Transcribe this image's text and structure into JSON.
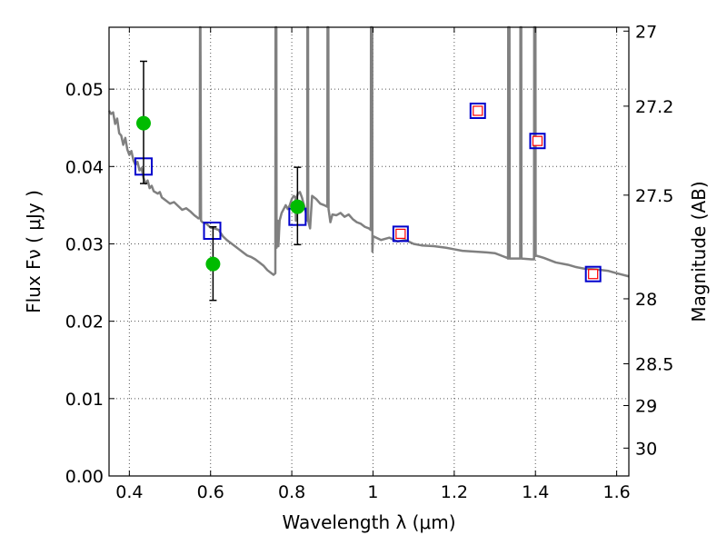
{
  "chart_data": {
    "type": "scatter",
    "xlabel": "Wavelength  λ (μm)",
    "ylabel_left": "Flux  Fν  ( μJy )",
    "ylabel_right": "Magnitude (AB)",
    "xlim": [
      0.35,
      1.63
    ],
    "ylim": [
      0.0,
      0.058
    ],
    "grid": true,
    "x_ticks": [
      0.4,
      0.6,
      0.8,
      1.0,
      1.2,
      1.4,
      1.6
    ],
    "x_tick_labels": [
      "0.4",
      "0.6",
      "0.8",
      "1",
      "1.2",
      "1.4",
      "1.6"
    ],
    "y_ticks": [
      0.0,
      0.01,
      0.02,
      0.03,
      0.04,
      0.05
    ],
    "y_tick_labels": [
      "0.00",
      "0.01",
      "0.02",
      "0.03",
      "0.04",
      "0.05"
    ],
    "right_ticks": [
      {
        "label": "27",
        "flux": 0.0575
      },
      {
        "label": "27.2",
        "flux": 0.0478
      },
      {
        "label": "27.5",
        "flux": 0.0363
      },
      {
        "label": "28",
        "flux": 0.0229
      },
      {
        "label": "28.5",
        "flux": 0.0145
      },
      {
        "label": "29",
        "flux": 0.0091
      },
      {
        "label": "30",
        "flux": 0.0036
      }
    ],
    "colors": {
      "sed": "#808080",
      "photometry": "#00bb00",
      "model_square": "#0000cc",
      "inner_square": "#ff0000",
      "grid": "#555555"
    },
    "series": [
      {
        "kind": "line",
        "points": [
          [
            0.35,
            0.0472
          ],
          [
            0.355,
            0.0468
          ],
          [
            0.36,
            0.047
          ],
          [
            0.365,
            0.0455
          ],
          [
            0.37,
            0.0462
          ],
          [
            0.375,
            0.0443
          ],
          [
            0.38,
            0.044
          ],
          [
            0.385,
            0.0428
          ],
          [
            0.39,
            0.0437
          ],
          [
            0.395,
            0.0422
          ],
          [
            0.4,
            0.0415
          ],
          [
            0.405,
            0.042
          ],
          [
            0.41,
            0.0408
          ],
          [
            0.415,
            0.0402
          ],
          [
            0.42,
            0.0406
          ],
          [
            0.425,
            0.0395
          ],
          [
            0.43,
            0.0398
          ],
          [
            0.435,
            0.0385
          ],
          [
            0.44,
            0.0378
          ],
          [
            0.445,
            0.0382
          ],
          [
            0.45,
            0.0372
          ],
          [
            0.455,
            0.0375
          ],
          [
            0.46,
            0.0368
          ],
          [
            0.47,
            0.0365
          ],
          [
            0.475,
            0.0367
          ],
          [
            0.48,
            0.036
          ],
          [
            0.49,
            0.0356
          ],
          [
            0.5,
            0.0352
          ],
          [
            0.51,
            0.0354
          ],
          [
            0.52,
            0.0349
          ],
          [
            0.53,
            0.0344
          ],
          [
            0.54,
            0.0346
          ],
          [
            0.55,
            0.0342
          ],
          [
            0.56,
            0.0337
          ],
          [
            0.565,
            0.0335
          ],
          [
            0.57,
            0.0333
          ],
          [
            0.5735,
            0.0333
          ],
          [
            0.574,
            0.058
          ],
          [
            0.575,
            0.058
          ],
          [
            0.5765,
            0.033
          ],
          [
            0.58,
            0.0328
          ],
          [
            0.59,
            0.0326
          ],
          [
            0.6,
            0.0321
          ],
          [
            0.61,
            0.032
          ],
          [
            0.62,
            0.0318
          ],
          [
            0.63,
            0.031
          ],
          [
            0.64,
            0.0305
          ],
          [
            0.65,
            0.0301
          ],
          [
            0.66,
            0.0297
          ],
          [
            0.67,
            0.0293
          ],
          [
            0.68,
            0.0289
          ],
          [
            0.69,
            0.0285
          ],
          [
            0.7,
            0.0283
          ],
          [
            0.71,
            0.028
          ],
          [
            0.72,
            0.0276
          ],
          [
            0.73,
            0.0272
          ],
          [
            0.74,
            0.0266
          ],
          [
            0.75,
            0.0262
          ],
          [
            0.755,
            0.026
          ],
          [
            0.7595,
            0.0262
          ],
          [
            0.76,
            0.058
          ],
          [
            0.762,
            0.058
          ],
          [
            0.7625,
            0.0295
          ],
          [
            0.765,
            0.033
          ],
          [
            0.767,
            0.0297
          ],
          [
            0.77,
            0.033
          ],
          [
            0.775,
            0.034
          ],
          [
            0.78,
            0.0345
          ],
          [
            0.785,
            0.035
          ],
          [
            0.79,
            0.0345
          ],
          [
            0.795,
            0.035
          ],
          [
            0.8,
            0.0358
          ],
          [
            0.805,
            0.0362
          ],
          [
            0.809,
            0.036
          ],
          [
            0.81,
            0.033
          ],
          [
            0.812,
            0.036
          ],
          [
            0.815,
            0.0365
          ],
          [
            0.82,
            0.0367
          ],
          [
            0.825,
            0.036
          ],
          [
            0.83,
            0.035
          ],
          [
            0.835,
            0.034
          ],
          [
            0.838,
            0.033
          ],
          [
            0.8385,
            0.058
          ],
          [
            0.84,
            0.058
          ],
          [
            0.8405,
            0.033
          ],
          [
            0.845,
            0.032
          ],
          [
            0.85,
            0.0362
          ],
          [
            0.86,
            0.0358
          ],
          [
            0.87,
            0.0352
          ],
          [
            0.88,
            0.035
          ],
          [
            0.8875,
            0.0348
          ],
          [
            0.888,
            0.058
          ],
          [
            0.89,
            0.058
          ],
          [
            0.8905,
            0.0345
          ],
          [
            0.895,
            0.0328
          ],
          [
            0.9,
            0.0338
          ],
          [
            0.91,
            0.0337
          ],
          [
            0.92,
            0.034
          ],
          [
            0.93,
            0.0335
          ],
          [
            0.94,
            0.0338
          ],
          [
            0.95,
            0.0332
          ],
          [
            0.96,
            0.0328
          ],
          [
            0.97,
            0.0326
          ],
          [
            0.98,
            0.0322
          ],
          [
            0.99,
            0.032
          ],
          [
            0.9945,
            0.0318
          ],
          [
            0.995,
            0.058
          ],
          [
            0.998,
            0.058
          ],
          [
            0.9985,
            0.029
          ],
          [
            1.0,
            0.031
          ],
          [
            1.02,
            0.0305
          ],
          [
            1.04,
            0.0308
          ],
          [
            1.06,
            0.0303
          ],
          [
            1.08,
            0.0305
          ],
          [
            1.1,
            0.03
          ],
          [
            1.12,
            0.0298
          ],
          [
            1.15,
            0.0297
          ],
          [
            1.18,
            0.0295
          ],
          [
            1.2,
            0.0293
          ],
          [
            1.22,
            0.0291
          ],
          [
            1.25,
            0.029
          ],
          [
            1.28,
            0.0289
          ],
          [
            1.3,
            0.0288
          ],
          [
            1.32,
            0.0284
          ],
          [
            1.33,
            0.0282
          ],
          [
            1.3325,
            0.0281
          ],
          [
            1.333,
            0.058
          ],
          [
            1.336,
            0.058
          ],
          [
            1.3365,
            0.0281
          ],
          [
            1.36,
            0.0281
          ],
          [
            1.3625,
            0.0281
          ],
          [
            1.363,
            0.058
          ],
          [
            1.365,
            0.058
          ],
          [
            1.3655,
            0.0281
          ],
          [
            1.39,
            0.028
          ],
          [
            1.3965,
            0.028
          ],
          [
            1.397,
            0.058
          ],
          [
            1.4,
            0.058
          ],
          [
            1.4005,
            0.0285
          ],
          [
            1.42,
            0.0282
          ],
          [
            1.45,
            0.0276
          ],
          [
            1.48,
            0.0273
          ],
          [
            1.5,
            0.027
          ],
          [
            1.52,
            0.0268
          ],
          [
            1.55,
            0.0267
          ],
          [
            1.58,
            0.0265
          ],
          [
            1.6,
            0.0262
          ],
          [
            1.63,
            0.0258
          ]
        ]
      },
      {
        "kind": "points_with_errorbars",
        "points": [
          {
            "x": 0.435,
            "y": 0.0456,
            "err_low": 0.0378,
            "err_high": 0.0536
          },
          {
            "x": 0.606,
            "y": 0.0274,
            "err_low": 0.0227,
            "err_high": 0.0322
          },
          {
            "x": 0.814,
            "y": 0.0348,
            "err_low": 0.0299,
            "err_high": 0.0399
          }
        ]
      },
      {
        "kind": "model_squares",
        "points": [
          {
            "x": 0.435,
            "y": 0.04,
            "size": "large",
            "inner": false
          },
          {
            "x": 0.604,
            "y": 0.0317,
            "size": "large",
            "inner": false
          },
          {
            "x": 0.814,
            "y": 0.0335,
            "size": "large",
            "inner": false
          },
          {
            "x": 1.068,
            "y": 0.0313,
            "size": "small",
            "inner": true
          },
          {
            "x": 1.258,
            "y": 0.0472,
            "size": "small",
            "inner": true
          },
          {
            "x": 1.405,
            "y": 0.0433,
            "size": "small",
            "inner": true
          },
          {
            "x": 1.542,
            "y": 0.0261,
            "size": "small",
            "inner": true
          }
        ]
      }
    ]
  }
}
